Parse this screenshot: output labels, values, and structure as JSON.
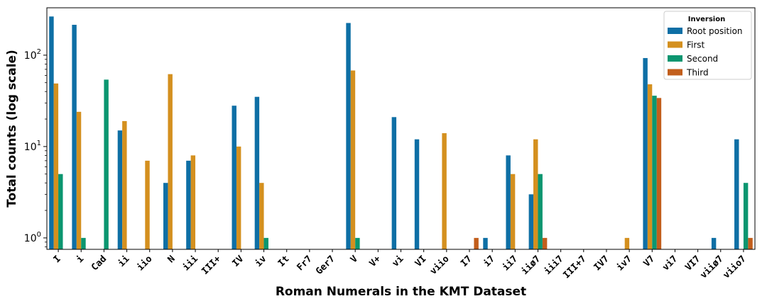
{
  "chart_data": {
    "type": "bar",
    "scale": "log",
    "title": "",
    "xlabel": "Roman Numerals in the KMT Dataset",
    "ylabel": "Total counts (log scale)",
    "ylim": [
      0.75,
      330
    ],
    "y_ticks": [
      {
        "value": 1,
        "base": "10",
        "exp": "0"
      },
      {
        "value": 10,
        "base": "10",
        "exp": "1"
      },
      {
        "value": 100,
        "base": "10",
        "exp": "2"
      }
    ],
    "grid": false,
    "legend": {
      "title": "Inversion",
      "position": "top-right"
    },
    "categories": [
      "I",
      "i",
      "Cad",
      "ii",
      "iio",
      "N",
      "iii",
      "III+",
      "IV",
      "iv",
      "It",
      "Fr7",
      "Ger7",
      "V",
      "V+",
      "vi",
      "VI",
      "viio",
      "I7",
      "i7",
      "ii7",
      "iiø7",
      "iii7",
      "III+7",
      "IV7",
      "iv7",
      "V7",
      "vi7",
      "VI7",
      "viiø7",
      "viio7"
    ],
    "series": [
      {
        "name": "Root position",
        "color": "#1f77b4",
        "fill": "#0e6fa5",
        "values": [
          265,
          215,
          null,
          15,
          null,
          4,
          7,
          null,
          28,
          35,
          null,
          null,
          null,
          225,
          null,
          21,
          12,
          null,
          null,
          1,
          8,
          3,
          null,
          null,
          null,
          null,
          93,
          null,
          null,
          1,
          12
        ]
      },
      {
        "name": "First",
        "color": "#e49b20",
        "fill": "#d4901f",
        "values": [
          49,
          24,
          null,
          19,
          7,
          62,
          8,
          null,
          10,
          4,
          null,
          null,
          null,
          68,
          null,
          null,
          null,
          14,
          null,
          null,
          5,
          12,
          null,
          null,
          null,
          1,
          48,
          null,
          null,
          null,
          null
        ]
      },
      {
        "name": "Second",
        "color": "#0a9870",
        "fill": "#0b9670",
        "values": [
          5,
          1,
          54,
          null,
          null,
          null,
          null,
          null,
          null,
          1,
          null,
          null,
          null,
          1,
          null,
          null,
          null,
          null,
          null,
          null,
          null,
          5,
          null,
          null,
          null,
          null,
          36,
          null,
          null,
          null,
          4
        ]
      },
      {
        "name": "Third",
        "color": "#c8611a",
        "fill": "#c25e1c",
        "values": [
          null,
          null,
          null,
          null,
          null,
          null,
          null,
          null,
          null,
          null,
          null,
          null,
          null,
          null,
          null,
          null,
          null,
          null,
          1,
          null,
          null,
          1,
          null,
          null,
          null,
          null,
          34,
          null,
          null,
          null,
          1
        ]
      }
    ]
  }
}
